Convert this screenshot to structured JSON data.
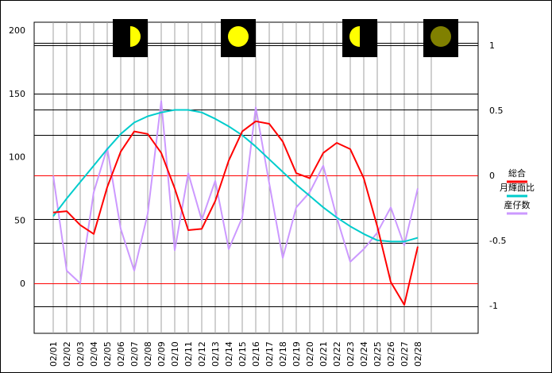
{
  "chart_data": {
    "type": "line",
    "categories": [
      "02/01",
      "02/02",
      "02/03",
      "02/04",
      "02/05",
      "02/06",
      "02/07",
      "02/08",
      "02/09",
      "02/10",
      "02/11",
      "02/12",
      "02/13",
      "02/14",
      "02/15",
      "02/16",
      "02/17",
      "02/18",
      "02/19",
      "02/20",
      "02/21",
      "02/22",
      "02/23",
      "02/24",
      "02/25",
      "02/26",
      "02/27",
      "02/28"
    ],
    "left_axis": {
      "ylim": [
        -40,
        200
      ],
      "ticks": [
        0,
        50,
        100,
        150,
        200
      ]
    },
    "right_axis": {
      "ylim": [
        -1.25,
        1.25
      ],
      "ticks": [
        -1,
        -0.5,
        0,
        0.5,
        1
      ],
      "tick_labels": [
        "-1",
        "-0.5",
        "0",
        "0.5",
        "1"
      ]
    },
    "horizontal_lines_left": [
      190,
      188,
      150,
      137,
      117,
      85,
      51,
      32,
      0,
      -18
    ],
    "red_lines_left": [
      85,
      0
    ],
    "series": [
      {
        "name": "総合",
        "color": "#ff0000",
        "axis": "left",
        "values": [
          56,
          57,
          46,
          39,
          76,
          104,
          120,
          118,
          103,
          75,
          42,
          43,
          65,
          97,
          120,
          128,
          126,
          112,
          87,
          83,
          103,
          111,
          106,
          83,
          45,
          1,
          -17,
          29
        ]
      },
      {
        "name": "月輝面比",
        "color": "#00cccc",
        "axis": "left",
        "values": [
          53,
          67,
          80,
          93,
          106,
          118,
          127,
          132,
          135,
          137,
          137,
          135,
          130,
          124,
          117,
          108,
          98,
          88,
          78,
          69,
          60,
          52,
          45,
          39,
          34,
          33,
          33,
          36
        ]
      },
      {
        "name": "産仔数",
        "color": "#cc99ff",
        "axis": "left",
        "values": [
          85,
          10,
          0,
          72,
          107,
          43,
          10,
          55,
          144,
          26,
          87,
          50,
          81,
          27,
          52,
          139,
          79,
          20,
          60,
          72,
          93,
          52,
          17,
          27,
          40,
          60,
          30,
          75
        ]
      }
    ],
    "moon_phases": [
      {
        "position": "02/04",
        "phase": "first-quarter",
        "color": "#ffff00"
      },
      {
        "position": "02/12",
        "phase": "full",
        "color": "#ffff00"
      },
      {
        "position": "02/21",
        "phase": "last-quarter",
        "color": "#ffff00"
      },
      {
        "position": "02/27",
        "phase": "new",
        "color": "#808000"
      }
    ]
  }
}
